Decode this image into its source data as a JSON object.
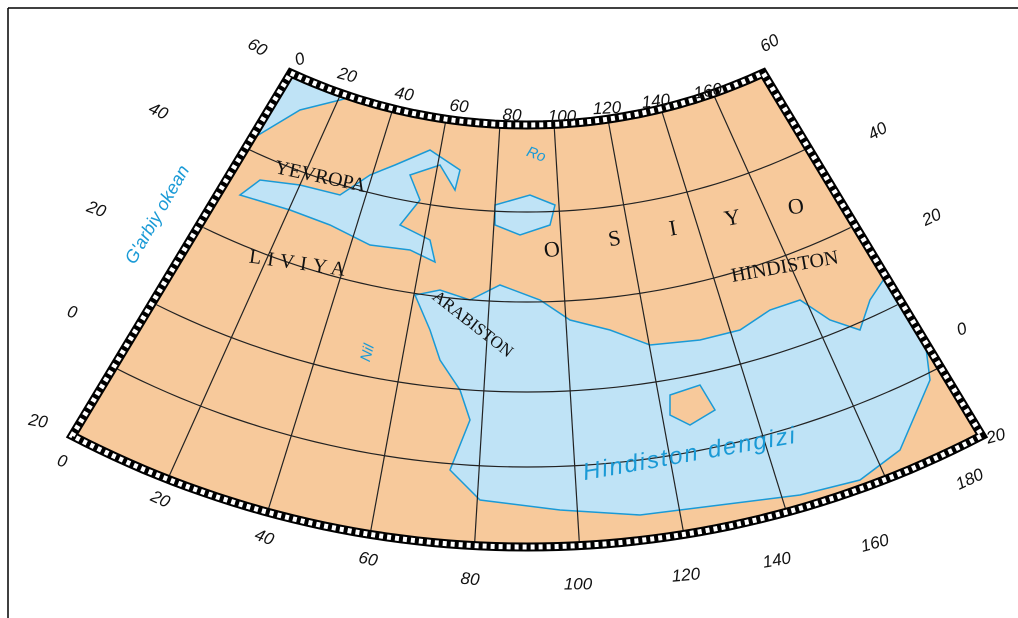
{
  "map": {
    "regions": [
      "YEVROPA",
      "LIVIYA",
      "ARABISTON",
      "O S I Y O",
      "HINDISTON"
    ],
    "water": [
      "G'arbiy okean",
      "Nil",
      "Ro",
      "Hindiston dengizi"
    ],
    "scale": {
      "top": [
        "60",
        "0",
        "20",
        "40",
        "60",
        "80",
        "100",
        "120",
        "140",
        "160",
        "60"
      ],
      "left": [
        "40",
        "20",
        "0",
        "20",
        "0"
      ],
      "bottom": [
        "20",
        "40",
        "60",
        "80",
        "100",
        "120",
        "140",
        "160",
        "180"
      ],
      "right": [
        "40",
        "20",
        "0",
        "20"
      ]
    }
  }
}
